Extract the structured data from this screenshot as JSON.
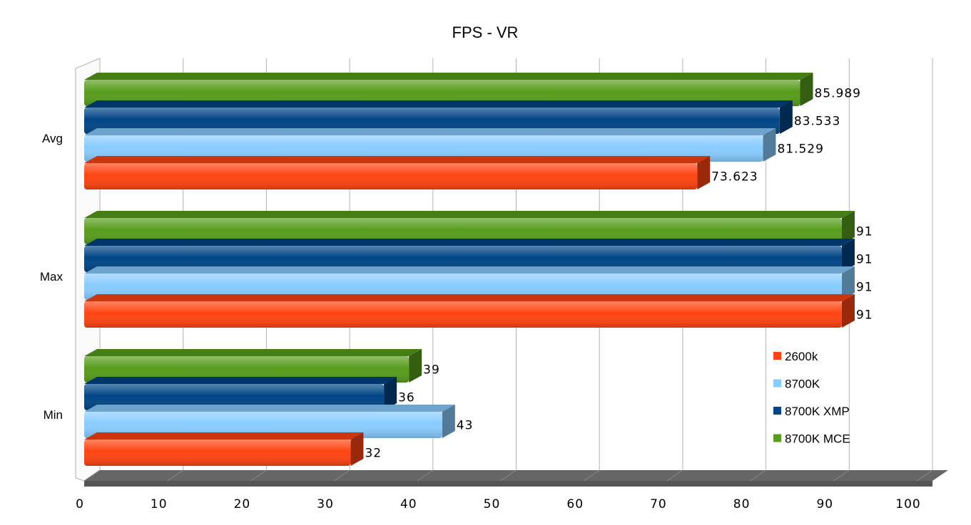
{
  "chart_data": {
    "type": "bar",
    "orientation": "horizontal",
    "title": "FPS - VR",
    "categories": [
      "Avg",
      "Max",
      "Min"
    ],
    "series": [
      {
        "name": "2600k",
        "color": "#ff4411",
        "values": [
          73.623,
          91,
          32
        ],
        "labels": [
          "73.623",
          "91",
          "32"
        ]
      },
      {
        "name": "8700K",
        "color": "#88ccff",
        "values": [
          81.529,
          91,
          43
        ],
        "labels": [
          "81.529",
          "91",
          "43"
        ]
      },
      {
        "name": "8700K XMP",
        "color": "#004586",
        "values": [
          83.533,
          91,
          36
        ],
        "labels": [
          "83.533",
          "91",
          "36"
        ]
      },
      {
        "name": "8700K MCE",
        "color": "#579d1c",
        "values": [
          85.989,
          91,
          39
        ],
        "labels": [
          "85.989",
          "91",
          "39"
        ]
      }
    ],
    "xlim": [
      0,
      100
    ],
    "xticks": [
      "0",
      "10",
      "20",
      "30",
      "40",
      "50",
      "60",
      "70",
      "80",
      "90",
      "100"
    ],
    "grid": true,
    "legend_position": "right"
  }
}
